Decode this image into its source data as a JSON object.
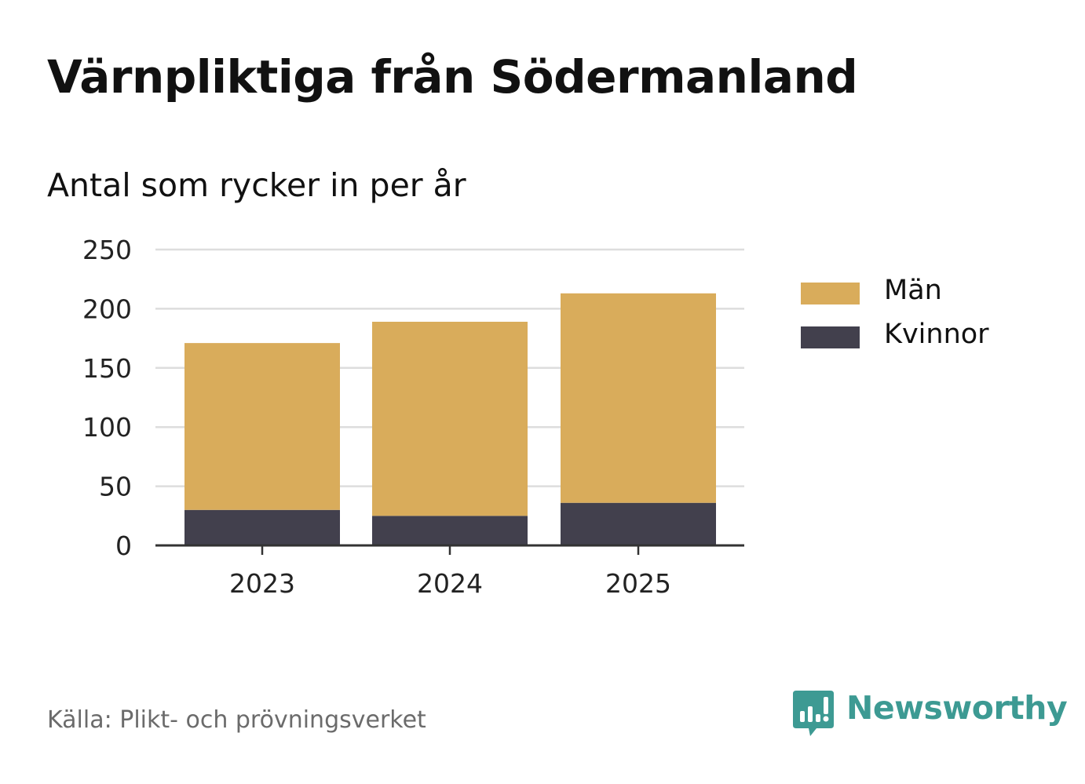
{
  "header": {
    "title": "Värnpliktiga från Södermanland",
    "subtitle": "Antal som rycker in per år"
  },
  "footer": {
    "source": "Källa: Plikt- och prövningsverket",
    "brand": "Newsworthy",
    "brand_icon": "newsworthy-chart-bubble-icon"
  },
  "colors": {
    "men": "#d9ac5b",
    "women": "#42404d",
    "grid": "#dddddd",
    "axis": "#333333",
    "brand": "#3d9a93"
  },
  "chart_data": {
    "type": "bar",
    "stacked": true,
    "categories": [
      "2023",
      "2024",
      "2025"
    ],
    "series": [
      {
        "name": "Kvinnor",
        "values": [
          30,
          25,
          36
        ]
      },
      {
        "name": "Män",
        "values": [
          141,
          164,
          177
        ]
      }
    ],
    "legend": [
      "Män",
      "Kvinnor"
    ],
    "ylim": [
      0,
      250
    ],
    "yticks": [
      0,
      50,
      100,
      150,
      200,
      250
    ],
    "grid": true,
    "legend_position": "right"
  }
}
